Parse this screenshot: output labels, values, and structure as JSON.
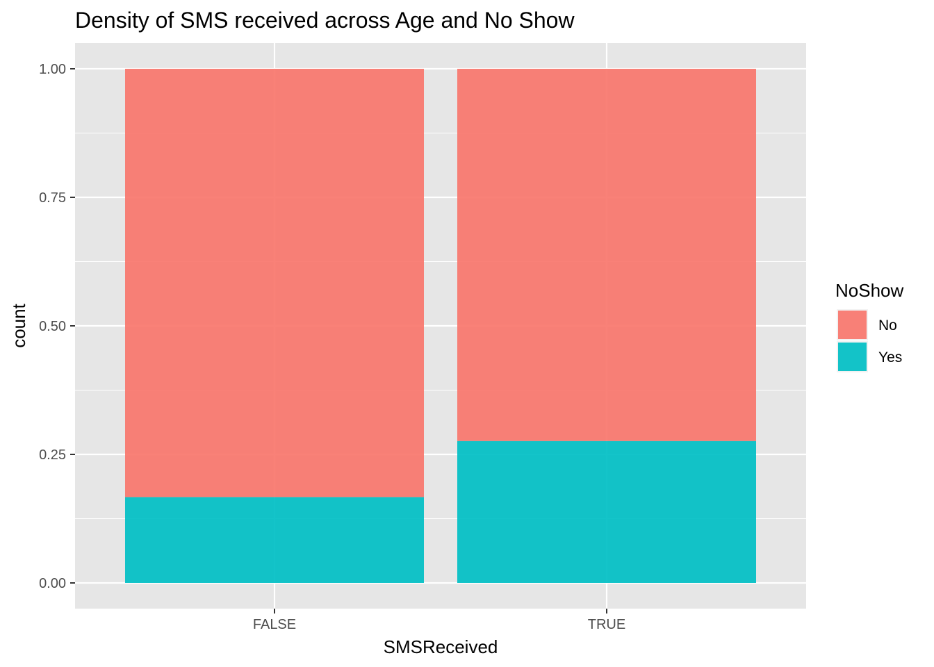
{
  "chart_data": {
    "type": "bar",
    "stacked": true,
    "position": "fill",
    "title": "Density of SMS received across Age and No Show",
    "xlabel": "SMSReceived",
    "ylabel": "count",
    "categories": [
      "FALSE",
      "TRUE"
    ],
    "series": [
      {
        "name": "No",
        "color": "#F8766D",
        "values": [
          0.833,
          0.724
        ]
      },
      {
        "name": "Yes",
        "color": "#00BFC4",
        "values": [
          0.167,
          0.276
        ]
      }
    ],
    "ylim": [
      -0.05,
      1.05
    ],
    "yticks": [
      0.0,
      0.25,
      0.5,
      0.75,
      1.0
    ],
    "ytick_labels": [
      "0.00",
      "0.25",
      "0.50",
      "0.75",
      "1.00"
    ],
    "grid": true,
    "panel_background": "#EBEBEB",
    "grid_color": "#FFFFFF",
    "legend": {
      "title": "NoShow",
      "placement": "right",
      "entries": [
        "No",
        "Yes"
      ]
    }
  }
}
